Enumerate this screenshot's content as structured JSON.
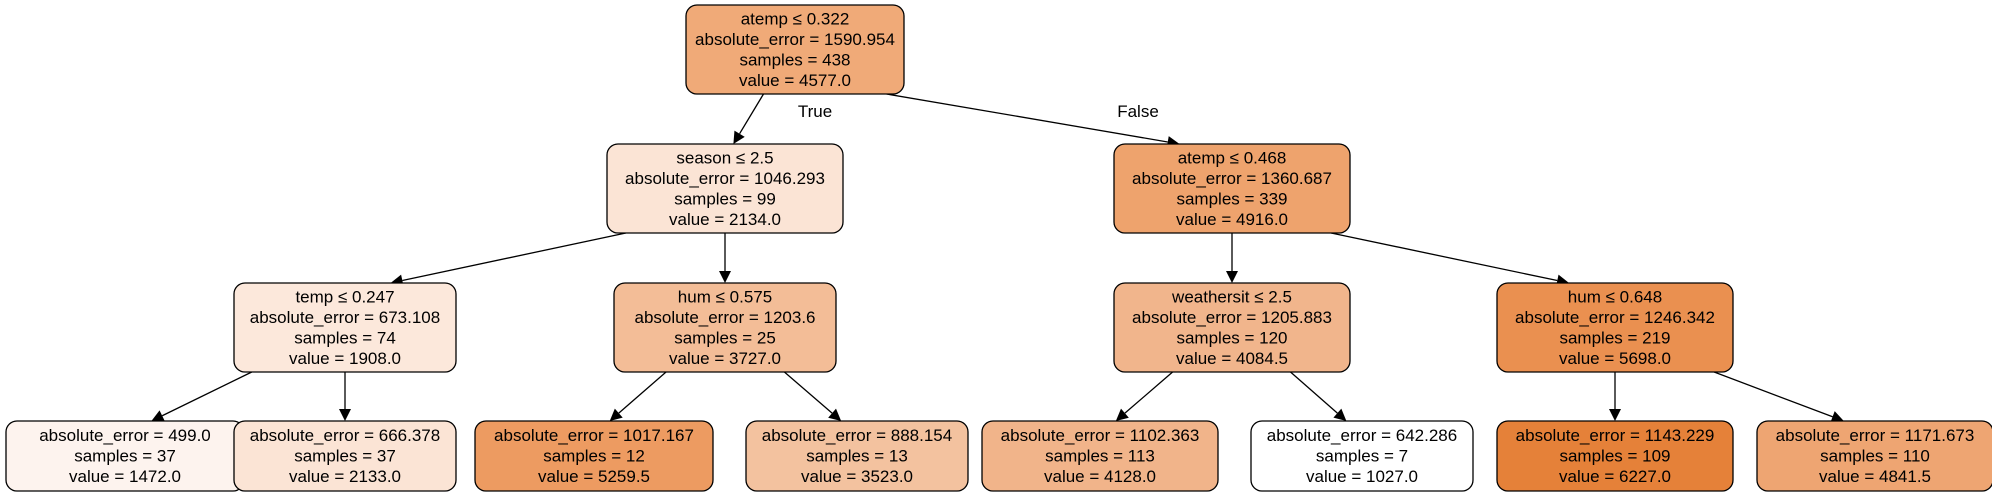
{
  "tree": {
    "nodes": [
      {
        "id": "n0",
        "lines": [
          "atemp ≤ 0.322",
          "absolute_error = 1590.954",
          "samples = 438",
          "value = 4577.0"
        ],
        "fill": "#f0aa78"
      },
      {
        "id": "n1",
        "lines": [
          "season ≤ 2.5",
          "absolute_error = 1046.293",
          "samples = 99",
          "value = 2134.0"
        ],
        "fill": "#fbe4d5"
      },
      {
        "id": "n2",
        "lines": [
          "temp ≤ 0.247",
          "absolute_error = 673.108",
          "samples = 74",
          "value = 1908.0"
        ],
        "fill": "#fce8db"
      },
      {
        "id": "n3",
        "lines": [
          "absolute_error = 499.0",
          "samples = 37",
          "value = 1472.0"
        ],
        "fill": "#fdf3ee"
      },
      {
        "id": "n4",
        "lines": [
          "absolute_error = 666.378",
          "samples = 37",
          "value = 2133.0"
        ],
        "fill": "#fbe4d5"
      },
      {
        "id": "n5",
        "lines": [
          "hum ≤ 0.575",
          "absolute_error = 1203.6",
          "samples = 25",
          "value = 3727.0"
        ],
        "fill": "#f3bd97"
      },
      {
        "id": "n6",
        "lines": [
          "absolute_error = 1017.167",
          "samples = 12",
          "value = 5259.5"
        ],
        "fill": "#ed9b61"
      },
      {
        "id": "n7",
        "lines": [
          "absolute_error = 888.154",
          "samples = 13",
          "value = 3523.0"
        ],
        "fill": "#f3c29f"
      },
      {
        "id": "n8",
        "lines": [
          "atemp ≤ 0.468",
          "absolute_error = 1360.687",
          "samples = 339",
          "value = 4916.0"
        ],
        "fill": "#eea36d"
      },
      {
        "id": "n9",
        "lines": [
          "weathersit ≤ 2.5",
          "absolute_error = 1205.883",
          "samples = 120",
          "value = 4084.5"
        ],
        "fill": "#f1b58c"
      },
      {
        "id": "n10",
        "lines": [
          "absolute_error = 1102.363",
          "samples = 113",
          "value = 4128.0"
        ],
        "fill": "#f1b48a"
      },
      {
        "id": "n11",
        "lines": [
          "absolute_error = 642.286",
          "samples = 7",
          "value = 1027.0"
        ],
        "fill": "#ffffff"
      },
      {
        "id": "n12",
        "lines": [
          "hum ≤ 0.648",
          "absolute_error = 1246.342",
          "samples = 219",
          "value = 5698.0"
        ],
        "fill": "#ea9050"
      },
      {
        "id": "n13",
        "lines": [
          "absolute_error = 1143.229",
          "samples = 109",
          "value = 6227.0"
        ],
        "fill": "#e58139"
      },
      {
        "id": "n14",
        "lines": [
          "absolute_error = 1171.673",
          "samples = 110",
          "value = 4841.5"
        ],
        "fill": "#eea572"
      }
    ],
    "edges": [
      {
        "from": "n0",
        "to": "n1",
        "label": "True"
      },
      {
        "from": "n0",
        "to": "n8",
        "label": "False"
      },
      {
        "from": "n1",
        "to": "n2"
      },
      {
        "from": "n1",
        "to": "n5"
      },
      {
        "from": "n2",
        "to": "n3"
      },
      {
        "from": "n2",
        "to": "n4"
      },
      {
        "from": "n5",
        "to": "n6"
      },
      {
        "from": "n5",
        "to": "n7"
      },
      {
        "from": "n8",
        "to": "n9"
      },
      {
        "from": "n8",
        "to": "n12"
      },
      {
        "from": "n9",
        "to": "n10"
      },
      {
        "from": "n9",
        "to": "n11"
      },
      {
        "from": "n12",
        "to": "n13"
      },
      {
        "from": "n12",
        "to": "n14"
      }
    ]
  }
}
